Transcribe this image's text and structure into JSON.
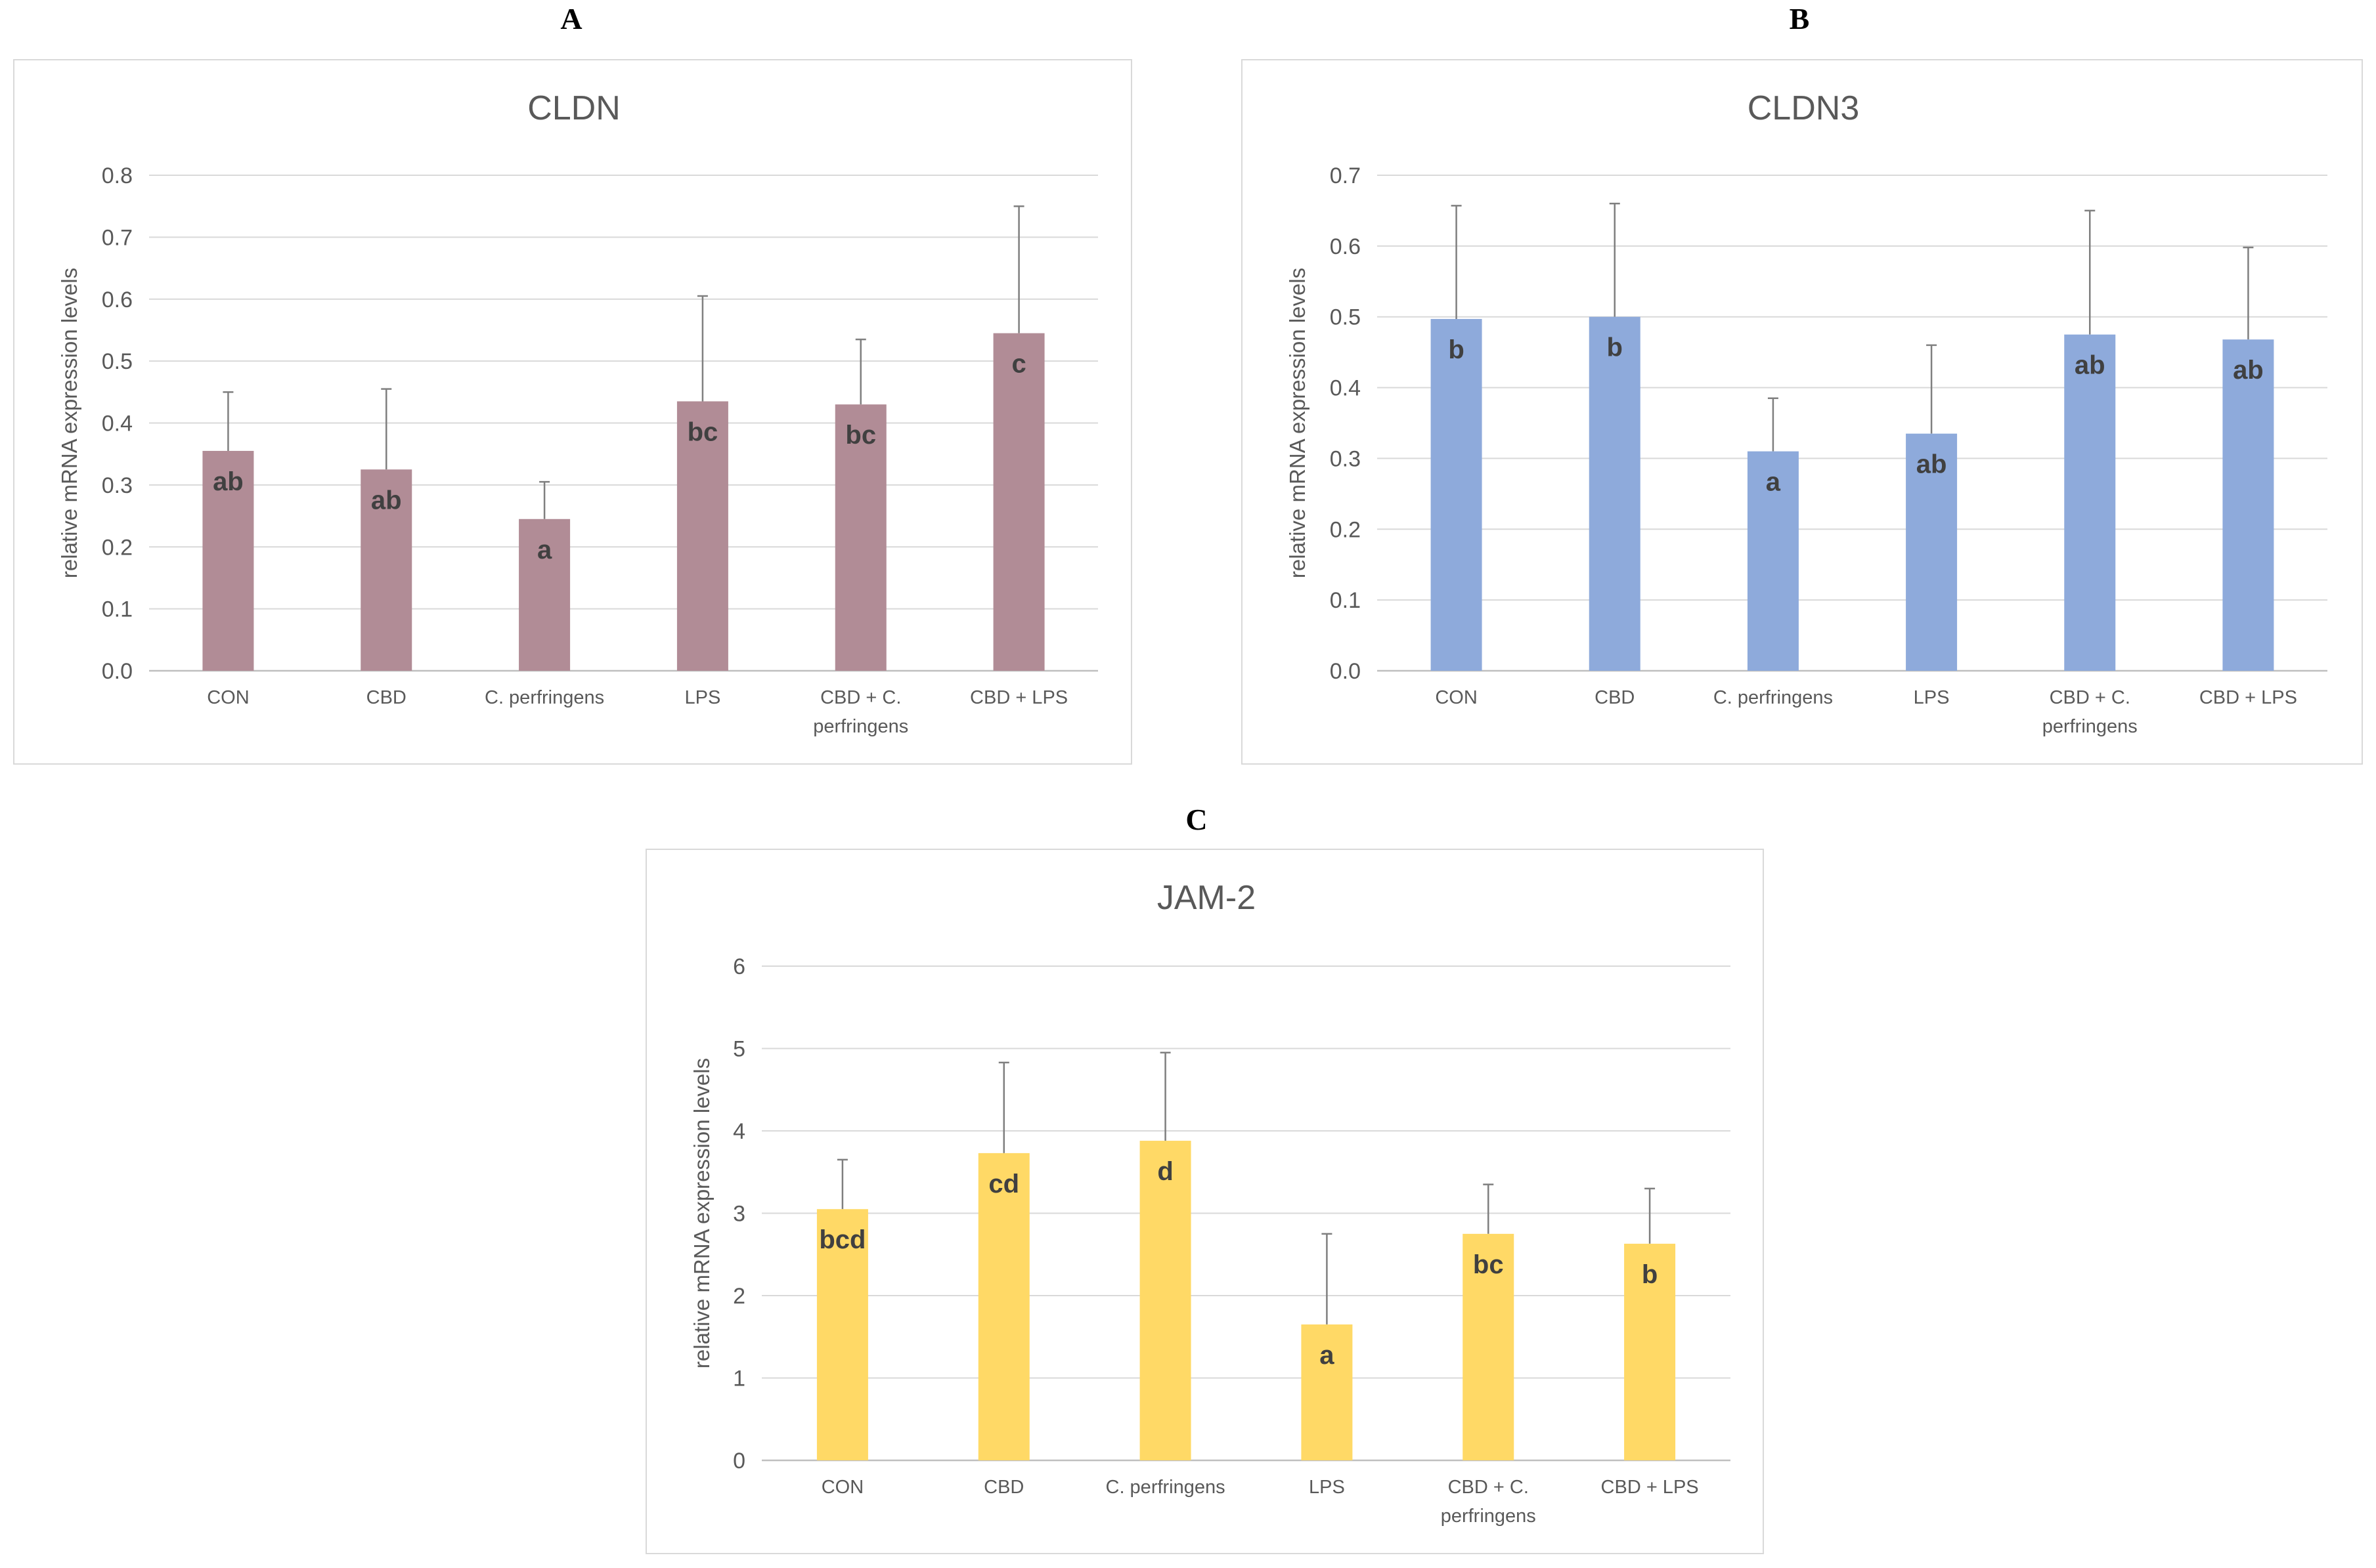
{
  "chart_data": [
    {
      "panel": "A",
      "type": "bar",
      "title": "CLDN",
      "ylabel": "relative mRNA expression levels",
      "xlabel": "",
      "categories": [
        [
          "CON"
        ],
        [
          "CBD"
        ],
        [
          "C. perfringens"
        ],
        [
          "LPS"
        ],
        [
          "CBD + C.",
          "perfringens"
        ],
        [
          "CBD + LPS"
        ]
      ],
      "values": [
        0.355,
        0.325,
        0.245,
        0.435,
        0.43,
        0.545
      ],
      "errors": [
        0.095,
        0.13,
        0.06,
        0.17,
        0.105,
        0.205
      ],
      "sig_letters": [
        "ab",
        "ab",
        "a",
        "bc",
        "bc",
        "c"
      ],
      "ylim": [
        0,
        0.8
      ],
      "yticks": [
        0.0,
        0.1,
        0.2,
        0.3,
        0.4,
        0.5,
        0.6,
        0.7,
        0.8
      ],
      "ytick_labels": [
        "0.0",
        "0.1",
        "0.2",
        "0.3",
        "0.4",
        "0.5",
        "0.6",
        "0.7",
        "0.8"
      ],
      "color": "#b18c96",
      "grid": true
    },
    {
      "panel": "B",
      "type": "bar",
      "title": "CLDN3",
      "ylabel": "relative mRNA expression levels",
      "xlabel": "",
      "categories": [
        [
          "CON"
        ],
        [
          "CBD"
        ],
        [
          "C. perfringens"
        ],
        [
          "LPS"
        ],
        [
          "CBD + C.",
          "perfringens"
        ],
        [
          "CBD + LPS"
        ]
      ],
      "values": [
        0.497,
        0.5,
        0.31,
        0.335,
        0.475,
        0.468
      ],
      "errors": [
        0.16,
        0.16,
        0.075,
        0.125,
        0.175,
        0.13
      ],
      "sig_letters": [
        "b",
        "b",
        "a",
        "ab",
        "ab",
        "ab"
      ],
      "ylim": [
        0,
        0.7
      ],
      "yticks": [
        0.0,
        0.1,
        0.2,
        0.3,
        0.4,
        0.5,
        0.6,
        0.7
      ],
      "ytick_labels": [
        "0.0",
        "0.1",
        "0.2",
        "0.3",
        "0.4",
        "0.5",
        "0.6",
        "0.7"
      ],
      "color": "#8eaadb",
      "grid": true
    },
    {
      "panel": "C",
      "type": "bar",
      "title": "JAM-2",
      "ylabel": "relative mRNA expression levels",
      "xlabel": "",
      "categories": [
        [
          "CON"
        ],
        [
          "CBD"
        ],
        [
          "C. perfringens"
        ],
        [
          "LPS"
        ],
        [
          "CBD + C.",
          "perfringens"
        ],
        [
          "CBD + LPS"
        ]
      ],
      "values": [
        3.05,
        3.73,
        3.88,
        1.65,
        2.75,
        2.63
      ],
      "errors": [
        0.6,
        1.1,
        1.07,
        1.1,
        0.6,
        0.67
      ],
      "sig_letters": [
        "bcd",
        "cd",
        "d",
        "a",
        "bc",
        "b"
      ],
      "ylim": [
        0,
        6
      ],
      "yticks": [
        0,
        1,
        2,
        3,
        4,
        5,
        6
      ],
      "ytick_labels": [
        "0",
        "1",
        "2",
        "3",
        "4",
        "5",
        "6"
      ],
      "color": "#ffd966",
      "grid": true
    }
  ]
}
